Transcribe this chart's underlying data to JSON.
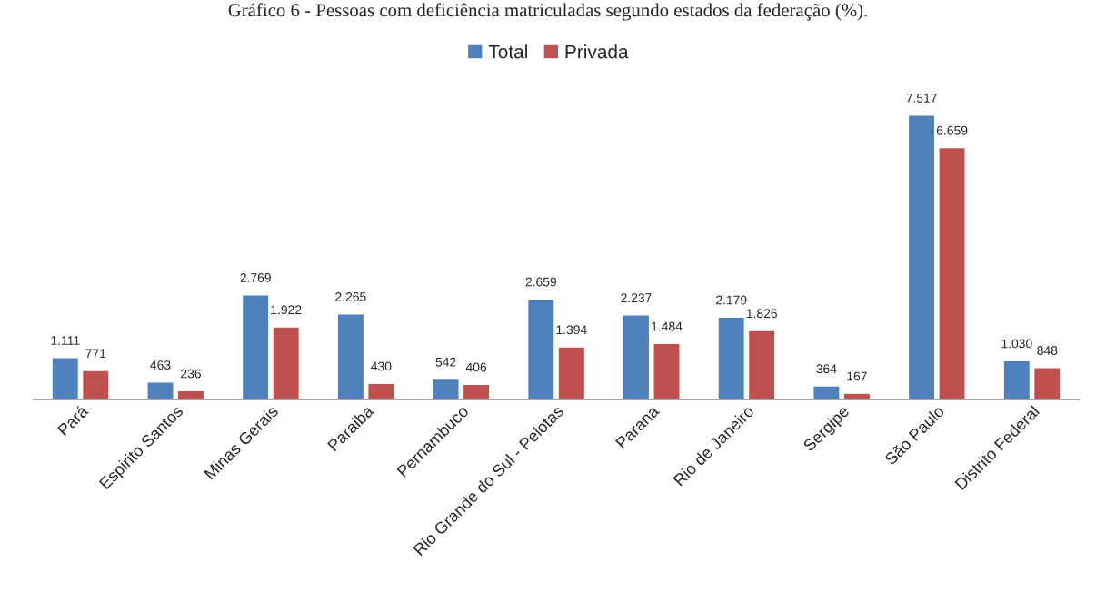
{
  "chart_data": {
    "type": "bar",
    "title": "Gráfico 6 - Pessoas com deficiência matriculadas segundo estados da federação (%).",
    "categories": [
      "Pará",
      "Espirito Santos",
      "Minas Gerais",
      "Paraiba",
      "Pernambuco",
      "Rio Grande do Sul - Pelotas",
      "Parana",
      "Rio de Janeiro",
      "Sergipe",
      "São Paulo",
      "Distrito Federal"
    ],
    "series": [
      {
        "name": "Total",
        "color": "#4f81bd",
        "values": [
          1111,
          463,
          2769,
          2265,
          542,
          2659,
          2237,
          2179,
          364,
          7517,
          1030
        ],
        "value_labels": [
          "1.111",
          "463",
          "2.769",
          "2.265",
          "542",
          "2.659",
          "2.237",
          "2.179",
          "364",
          "7.517",
          "1.030"
        ]
      },
      {
        "name": "Privada",
        "color": "#c0504d",
        "values": [
          771,
          236,
          1922,
          430,
          406,
          1394,
          1484,
          1826,
          167,
          6659,
          848
        ],
        "value_labels": [
          "771",
          "236",
          "1.922",
          "430",
          "406",
          "1.394",
          "1.484",
          "1.826",
          "167",
          "6.659",
          "848"
        ]
      }
    ],
    "legend": "top",
    "grid": false
  }
}
